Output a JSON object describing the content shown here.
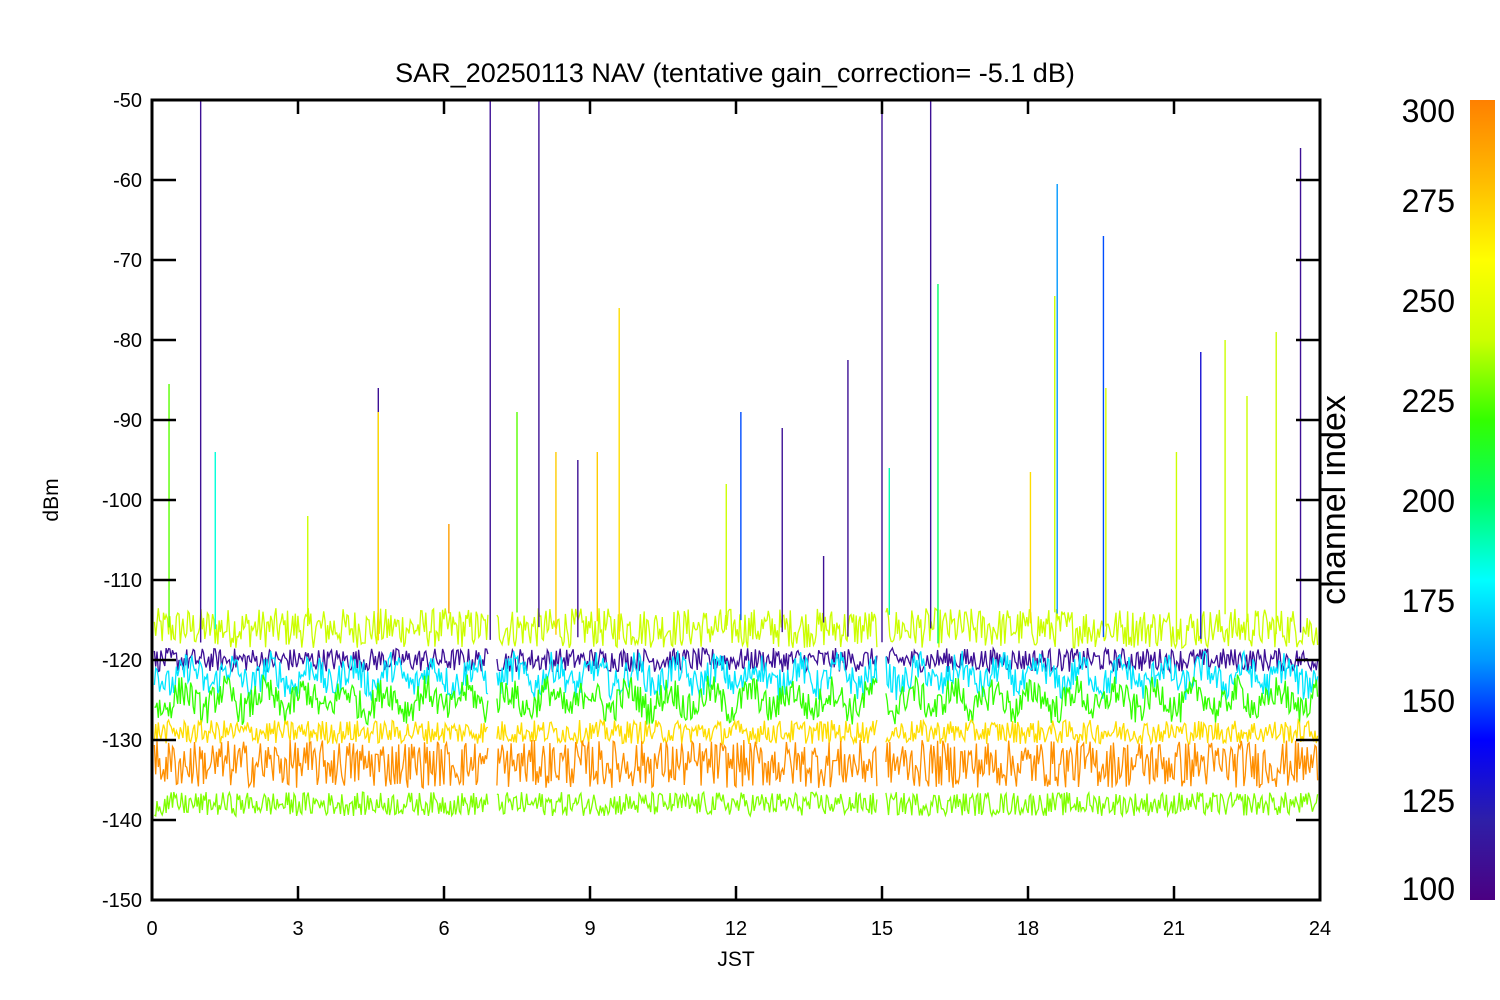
{
  "chart_data": {
    "type": "line",
    "title": "SAR_20250113 NAV (tentative gain_correction= -5.1 dB)",
    "xlabel": "JST",
    "ylabel": "dBm",
    "xlim": [
      0,
      24
    ],
    "ylim": [
      -150,
      -50
    ],
    "x_ticks": [
      "0",
      "3",
      "6",
      "9",
      "12",
      "15",
      "18",
      "21",
      "24"
    ],
    "y_ticks": [
      "-50",
      "-60",
      "-70",
      "-80",
      "-90",
      "-100",
      "-110",
      "-120",
      "-130",
      "-140",
      "-150"
    ],
    "grid": false,
    "colorbar": {
      "label": "channel index",
      "range": [
        100,
        300
      ],
      "ticks": [
        "300",
        "275",
        "250",
        "225",
        "200",
        "175",
        "150",
        "125",
        "100"
      ],
      "colors": [
        "#4b0082",
        "#2e1fa8",
        "#0000ff",
        "#0099ff",
        "#00ffff",
        "#00ff66",
        "#33ff00",
        "#ccff00",
        "#ffff00",
        "#ffbb00",
        "#ff8000"
      ]
    },
    "data_gaps_x": [
      7.0,
      15.0
    ],
    "bands": [
      {
        "name": "channel ~240 (upper green)",
        "center": -116,
        "spread": 2.5,
        "channel": 240
      },
      {
        "name": "channel ~110 (purple)",
        "center": -120,
        "spread": 1.5,
        "channel": 110
      },
      {
        "name": "channel ~175 (cyan)",
        "center": -122,
        "spread": 2.0,
        "channel": 175
      },
      {
        "name": "channel ~220 (green)",
        "center": -125,
        "spread": 2.0,
        "channel": 220
      },
      {
        "name": "channel ~270 (yellow)",
        "center": -129,
        "spread": 1.5,
        "channel": 270
      },
      {
        "name": "channel ~295 (orange)",
        "center": -133,
        "spread": 3.0,
        "channel": 295
      },
      {
        "name": "channel ~230 (lower green)",
        "center": -138,
        "spread": 1.5,
        "channel": 230
      }
    ],
    "spikes": [
      {
        "x": 0.35,
        "y": -85.5,
        "channel": 225
      },
      {
        "x": 1.0,
        "y": -50,
        "channel": 110
      },
      {
        "x": 1.3,
        "y": -94,
        "channel": 185
      },
      {
        "x": 3.2,
        "y": -102,
        "channel": 240
      },
      {
        "x": 4.65,
        "y": -86,
        "channel": 110
      },
      {
        "x": 4.65,
        "y": -89,
        "channel": 270
      },
      {
        "x": 6.1,
        "y": -103,
        "channel": 290
      },
      {
        "x": 6.95,
        "y": -50,
        "channel": 110
      },
      {
        "x": 7.5,
        "y": -89,
        "channel": 225
      },
      {
        "x": 7.95,
        "y": -50,
        "channel": 110
      },
      {
        "x": 8.3,
        "y": -94,
        "channel": 275
      },
      {
        "x": 8.75,
        "y": -95,
        "channel": 110
      },
      {
        "x": 9.15,
        "y": -94,
        "channel": 275
      },
      {
        "x": 9.6,
        "y": -76,
        "channel": 270
      },
      {
        "x": 11.8,
        "y": -98,
        "channel": 240
      },
      {
        "x": 12.1,
        "y": -89,
        "channel": 150
      },
      {
        "x": 12.95,
        "y": -91,
        "channel": 110
      },
      {
        "x": 13.8,
        "y": -107,
        "channel": 110
      },
      {
        "x": 14.3,
        "y": -82.5,
        "channel": 110
      },
      {
        "x": 15.0,
        "y": -50,
        "channel": 110
      },
      {
        "x": 15.15,
        "y": -96,
        "channel": 190
      },
      {
        "x": 16.0,
        "y": -50,
        "channel": 110
      },
      {
        "x": 16.15,
        "y": -73,
        "channel": 200
      },
      {
        "x": 18.05,
        "y": -96.5,
        "channel": 270
      },
      {
        "x": 18.6,
        "y": -60.5,
        "channel": 160
      },
      {
        "x": 18.55,
        "y": -74.5,
        "channel": 240
      },
      {
        "x": 19.55,
        "y": -67,
        "channel": 150
      },
      {
        "x": 19.6,
        "y": -86,
        "channel": 245
      },
      {
        "x": 21.05,
        "y": -94,
        "channel": 240
      },
      {
        "x": 21.55,
        "y": -81.5,
        "channel": 130
      },
      {
        "x": 22.05,
        "y": -80,
        "channel": 240
      },
      {
        "x": 22.5,
        "y": -87,
        "channel": 240
      },
      {
        "x": 23.1,
        "y": -79,
        "channel": 240
      },
      {
        "x": 23.6,
        "y": -56,
        "channel": 110
      }
    ]
  }
}
